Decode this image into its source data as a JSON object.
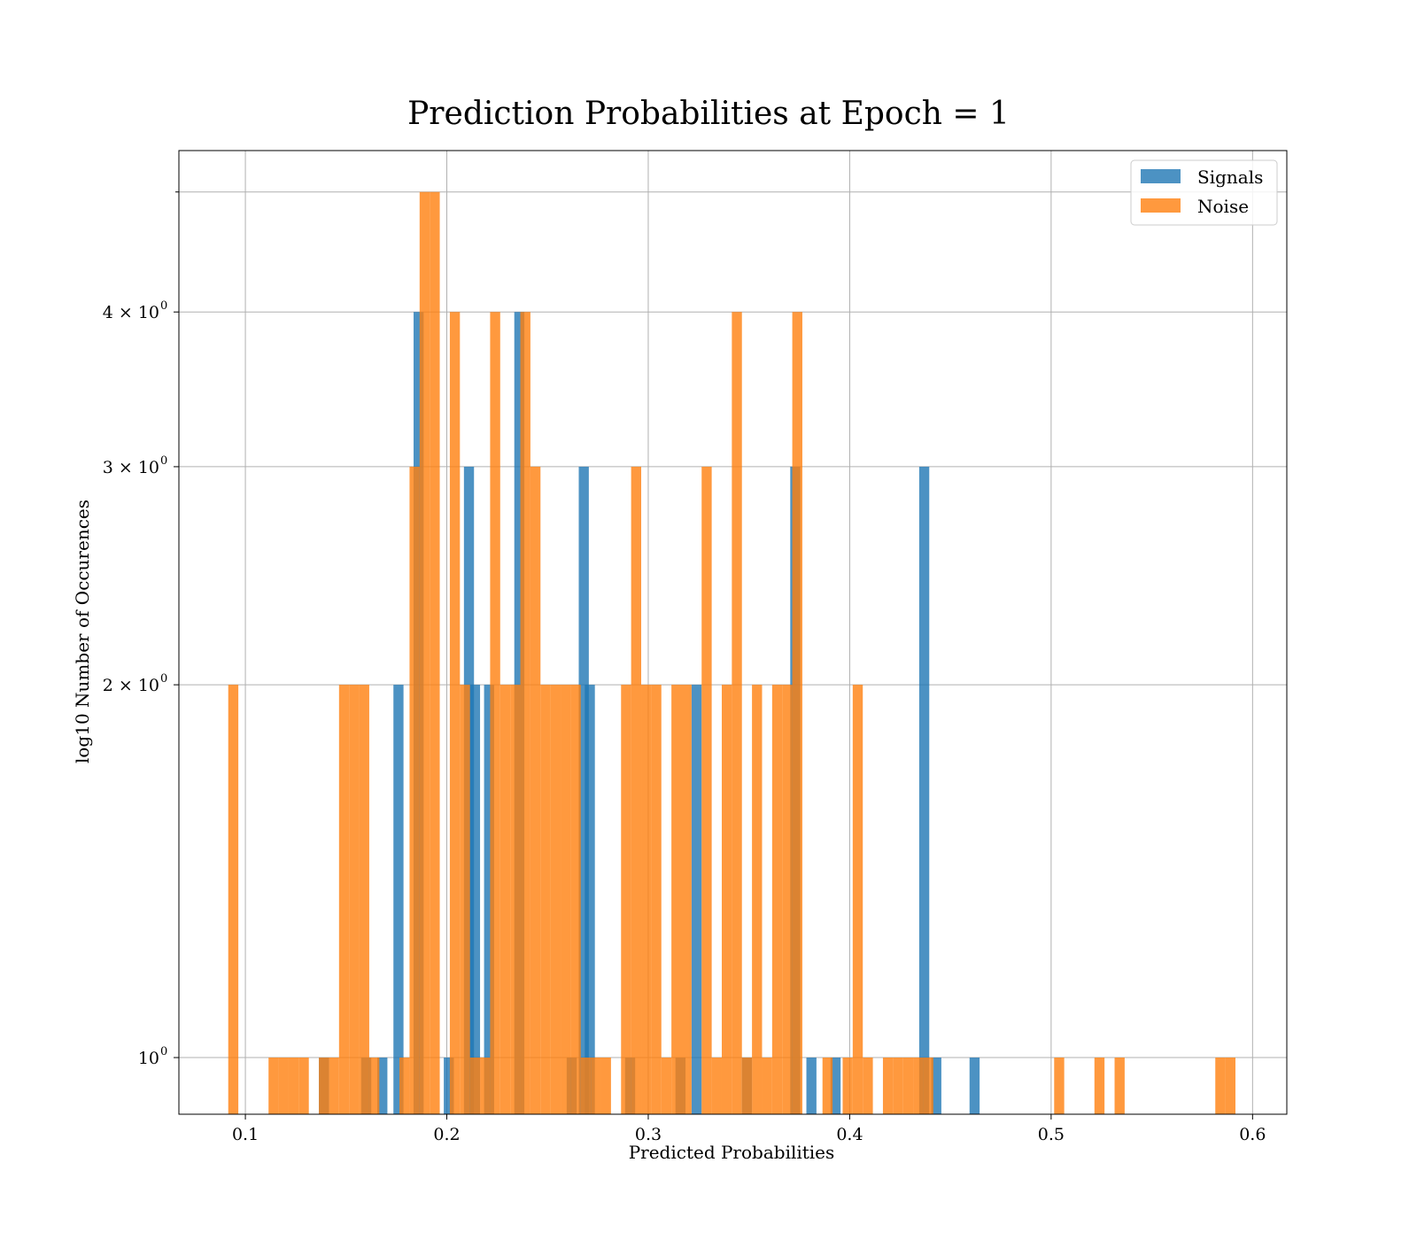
{
  "chart_data": {
    "type": "bar",
    "title": "Prediction Probabilities at Epoch = 1",
    "xlabel": "Predicted Probabilities",
    "ylabel": "log10 Number of Occurences",
    "xlim": [
      0.067,
      0.617
    ],
    "ylim": [
      0.9,
      5.4
    ],
    "y_scale": "log",
    "grid": true,
    "legend_position": "top-right",
    "bin_width": 0.005,
    "x_ticks": [
      {
        "value": 0.1,
        "label": "0.1"
      },
      {
        "value": 0.2,
        "label": "0.2"
      },
      {
        "value": 0.3,
        "label": "0.3"
      },
      {
        "value": 0.4,
        "label": "0.4"
      },
      {
        "value": 0.5,
        "label": "0.5"
      },
      {
        "value": 0.6,
        "label": "0.6"
      }
    ],
    "y_ticks": [
      {
        "value": 1,
        "base": "10",
        "exp": "0"
      },
      {
        "value": 2,
        "base": "2 × 10",
        "exp": "0"
      },
      {
        "value": 3,
        "base": "3 × 10",
        "exp": "0"
      },
      {
        "value": 4,
        "base": "4 × 10",
        "exp": "0"
      }
    ],
    "y_minor_ticks": [
      5
    ],
    "series": [
      {
        "name": "Signals",
        "color": "#1f77b4",
        "bins": [
          {
            "x": 0.139,
            "v": 1
          },
          {
            "x": 0.16,
            "v": 1
          },
          {
            "x": 0.168,
            "v": 1
          },
          {
            "x": 0.176,
            "v": 2
          },
          {
            "x": 0.186,
            "v": 4
          },
          {
            "x": 0.201,
            "v": 1
          },
          {
            "x": 0.211,
            "v": 3
          },
          {
            "x": 0.214,
            "v": 2
          },
          {
            "x": 0.221,
            "v": 2
          },
          {
            "x": 0.236,
            "v": 4
          },
          {
            "x": 0.262,
            "v": 1
          },
          {
            "x": 0.268,
            "v": 3
          },
          {
            "x": 0.271,
            "v": 2
          },
          {
            "x": 0.291,
            "v": 1
          },
          {
            "x": 0.316,
            "v": 1
          },
          {
            "x": 0.324,
            "v": 2
          },
          {
            "x": 0.349,
            "v": 1
          },
          {
            "x": 0.373,
            "v": 3
          },
          {
            "x": 0.381,
            "v": 1
          },
          {
            "x": 0.393,
            "v": 1
          },
          {
            "x": 0.437,
            "v": 3
          },
          {
            "x": 0.443,
            "v": 1
          },
          {
            "x": 0.462,
            "v": 1
          }
        ]
      },
      {
        "name": "Noise",
        "color": "#ff7f0e",
        "bins": [
          {
            "x": 0.094,
            "v": 2
          },
          {
            "x": 0.114,
            "v": 1
          },
          {
            "x": 0.119,
            "v": 1
          },
          {
            "x": 0.124,
            "v": 1
          },
          {
            "x": 0.129,
            "v": 1
          },
          {
            "x": 0.139,
            "v": 1
          },
          {
            "x": 0.144,
            "v": 1
          },
          {
            "x": 0.149,
            "v": 2
          },
          {
            "x": 0.154,
            "v": 2
          },
          {
            "x": 0.159,
            "v": 2
          },
          {
            "x": 0.164,
            "v": 1
          },
          {
            "x": 0.179,
            "v": 1
          },
          {
            "x": 0.184,
            "v": 3
          },
          {
            "x": 0.189,
            "v": 5
          },
          {
            "x": 0.194,
            "v": 5
          },
          {
            "x": 0.204,
            "v": 4
          },
          {
            "x": 0.209,
            "v": 2
          },
          {
            "x": 0.214,
            "v": 1
          },
          {
            "x": 0.219,
            "v": 1
          },
          {
            "x": 0.224,
            "v": 4
          },
          {
            "x": 0.229,
            "v": 2
          },
          {
            "x": 0.234,
            "v": 2
          },
          {
            "x": 0.239,
            "v": 4
          },
          {
            "x": 0.244,
            "v": 3
          },
          {
            "x": 0.249,
            "v": 2
          },
          {
            "x": 0.254,
            "v": 2
          },
          {
            "x": 0.259,
            "v": 2
          },
          {
            "x": 0.264,
            "v": 2
          },
          {
            "x": 0.269,
            "v": 1
          },
          {
            "x": 0.274,
            "v": 1
          },
          {
            "x": 0.279,
            "v": 1
          },
          {
            "x": 0.289,
            "v": 2
          },
          {
            "x": 0.294,
            "v": 3
          },
          {
            "x": 0.299,
            "v": 2
          },
          {
            "x": 0.304,
            "v": 2
          },
          {
            "x": 0.309,
            "v": 1
          },
          {
            "x": 0.314,
            "v": 2
          },
          {
            "x": 0.319,
            "v": 2
          },
          {
            "x": 0.329,
            "v": 3
          },
          {
            "x": 0.334,
            "v": 1
          },
          {
            "x": 0.339,
            "v": 2
          },
          {
            "x": 0.344,
            "v": 4
          },
          {
            "x": 0.349,
            "v": 1
          },
          {
            "x": 0.354,
            "v": 2
          },
          {
            "x": 0.359,
            "v": 1
          },
          {
            "x": 0.364,
            "v": 2
          },
          {
            "x": 0.369,
            "v": 2
          },
          {
            "x": 0.374,
            "v": 4
          },
          {
            "x": 0.389,
            "v": 1
          },
          {
            "x": 0.399,
            "v": 1
          },
          {
            "x": 0.404,
            "v": 2
          },
          {
            "x": 0.409,
            "v": 1
          },
          {
            "x": 0.419,
            "v": 1
          },
          {
            "x": 0.424,
            "v": 1
          },
          {
            "x": 0.429,
            "v": 1
          },
          {
            "x": 0.434,
            "v": 1
          },
          {
            "x": 0.439,
            "v": 1
          },
          {
            "x": 0.504,
            "v": 1
          },
          {
            "x": 0.524,
            "v": 1
          },
          {
            "x": 0.534,
            "v": 1
          },
          {
            "x": 0.584,
            "v": 1
          },
          {
            "x": 0.589,
            "v": 1
          }
        ]
      }
    ]
  }
}
